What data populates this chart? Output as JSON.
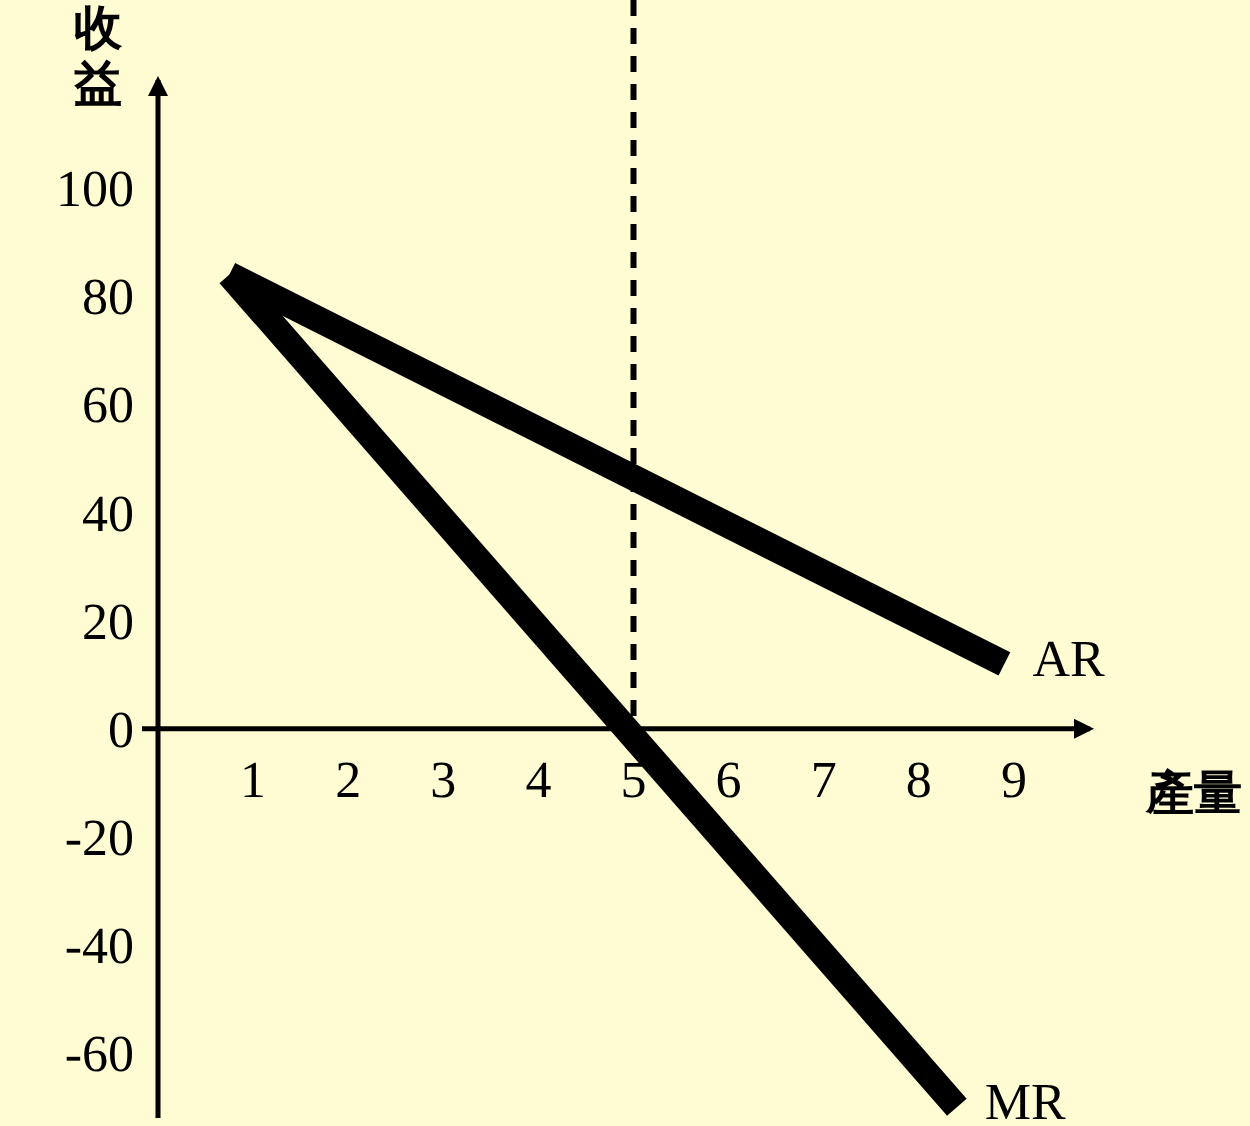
{
  "chart_data": {
    "type": "line",
    "ylabel": "收益",
    "xlabel": "產量",
    "xlim": [
      0,
      9.8
    ],
    "ylim": [
      -72,
      120
    ],
    "xticks": [
      1,
      2,
      3,
      4,
      5,
      6,
      7,
      8,
      9
    ],
    "yticks": [
      -60,
      -40,
      -20,
      0,
      20,
      40,
      60,
      80,
      100
    ],
    "grid": false,
    "series": [
      {
        "name": "AR",
        "color": "#000000",
        "x": [
          0.75,
          8.9
        ],
        "values": [
          84,
          12
        ]
      },
      {
        "name": "MR",
        "color": "#000000",
        "x": [
          0.75,
          8.4
        ],
        "values": [
          84,
          -70
        ]
      }
    ],
    "ref_lines": [
      {
        "axis": "x",
        "value": 5,
        "color": "#000000",
        "line_style": "dashed"
      }
    ]
  }
}
